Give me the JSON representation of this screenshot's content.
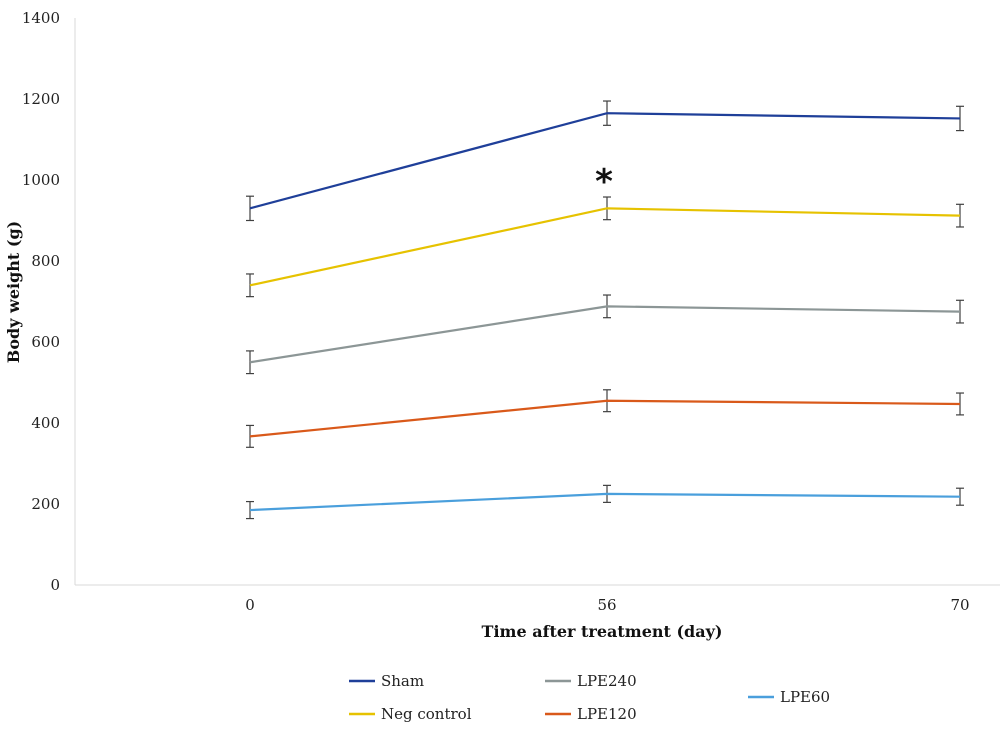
{
  "chart_data": {
    "type": "line",
    "title": "",
    "xlabel": "Time after treatment (day)",
    "ylabel": "Body weight (g)",
    "categories": [
      "0",
      "56",
      "70"
    ],
    "ylim": [
      0,
      1400
    ],
    "yticks": [
      0,
      200,
      400,
      600,
      800,
      1000,
      1200,
      1400
    ],
    "grid": false,
    "legend_position": "bottom",
    "series": [
      {
        "name": "Sham",
        "color": "#1f3f99",
        "values": [
          930,
          1165,
          1152
        ],
        "errors": [
          30,
          30,
          30
        ]
      },
      {
        "name": "Neg control",
        "color": "#e6c200",
        "values": [
          740,
          930,
          912
        ],
        "errors": [
          28,
          28,
          28
        ]
      },
      {
        "name": "LPE240",
        "color": "#8c9696",
        "values": [
          550,
          688,
          675
        ],
        "errors": [
          28,
          28,
          28
        ]
      },
      {
        "name": "LPE120",
        "color": "#d9591a",
        "values": [
          367,
          455,
          447
        ],
        "errors": [
          27,
          27,
          27
        ]
      },
      {
        "name": "LPE60",
        "color": "#4a9fdc",
        "values": [
          185,
          225,
          218
        ],
        "errors": [
          21,
          21,
          21
        ]
      }
    ],
    "annotations": [
      {
        "text": "*",
        "x": "56",
        "series": "Neg control"
      }
    ]
  }
}
